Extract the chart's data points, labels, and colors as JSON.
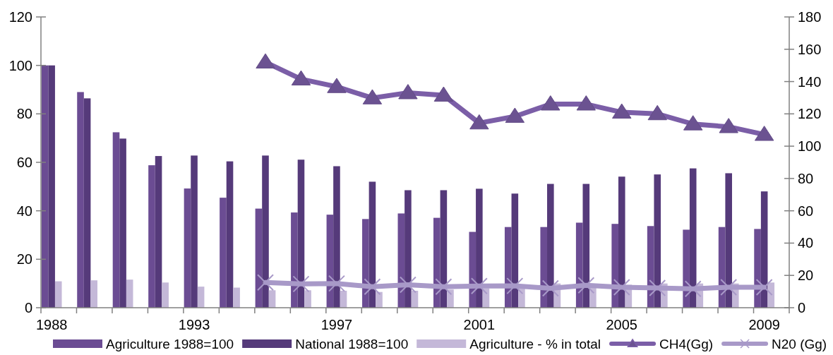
{
  "chart_data": {
    "type": "bar",
    "categories": [
      "1988",
      null,
      null,
      null,
      "1993",
      null,
      null,
      null,
      "1997",
      null,
      null,
      null,
      "2001",
      null,
      null,
      null,
      "2005",
      null,
      null,
      null,
      "2009"
    ],
    "ylim": [
      0,
      120
    ],
    "yticks": [
      0,
      20,
      40,
      60,
      80,
      100,
      120
    ],
    "y2lim": [
      0,
      180
    ],
    "y2ticks": [
      0,
      20,
      40,
      60,
      80,
      100,
      120,
      140,
      160,
      180
    ],
    "grid": false,
    "legend": "bottom",
    "series": [
      {
        "name": "Agriculture 1988=100",
        "color": "#6b4c93",
        "values": [
          100,
          89,
          72.4,
          58.8,
          49.2,
          45.4,
          40.9,
          39.3,
          38.4,
          36.6,
          38.9,
          37.1,
          31.3,
          33.3,
          33.3,
          35.1,
          34.6,
          33.7,
          32.2,
          33.3,
          32.5
        ]
      },
      {
        "name": "National 1988=100",
        "color": "#553a7a",
        "values": [
          100,
          86.4,
          69.8,
          62.6,
          62.8,
          60.4,
          62.8,
          61.1,
          58.4,
          52,
          48.5,
          48.5,
          49.1,
          47.1,
          51.1,
          51.1,
          54.1,
          55,
          57.5,
          55.5,
          48
        ]
      },
      {
        "name": "Agriculture - % in total",
        "color": "#c4b8d8",
        "values": [
          10.9,
          11.3,
          11.6,
          10.4,
          8.7,
          8.3,
          7.2,
          7.2,
          7,
          6.5,
          7,
          7.5,
          8,
          8.5,
          10,
          9,
          9.5,
          10,
          10,
          10,
          10.4
        ]
      },
      {
        "name": "CH4(Gg)",
        "type": "line",
        "axis": "y2",
        "marker": "triangle",
        "color": "#7b5ea7",
        "values": [
          null,
          null,
          null,
          null,
          null,
          null,
          152,
          141.5,
          136.8,
          129.8,
          133,
          131.5,
          114.3,
          118.4,
          126,
          126,
          121,
          120,
          113.7,
          112,
          107.2
        ]
      },
      {
        "name": "N20 (Gg)",
        "type": "line",
        "axis": "y2",
        "marker": "cross",
        "color": "#a899c8",
        "values": [
          null,
          null,
          null,
          null,
          null,
          null,
          15.6,
          14.7,
          15,
          13,
          14.2,
          13,
          13.4,
          13.5,
          12,
          13.9,
          12.7,
          12.2,
          11.7,
          12.7,
          12.7
        ]
      }
    ]
  }
}
